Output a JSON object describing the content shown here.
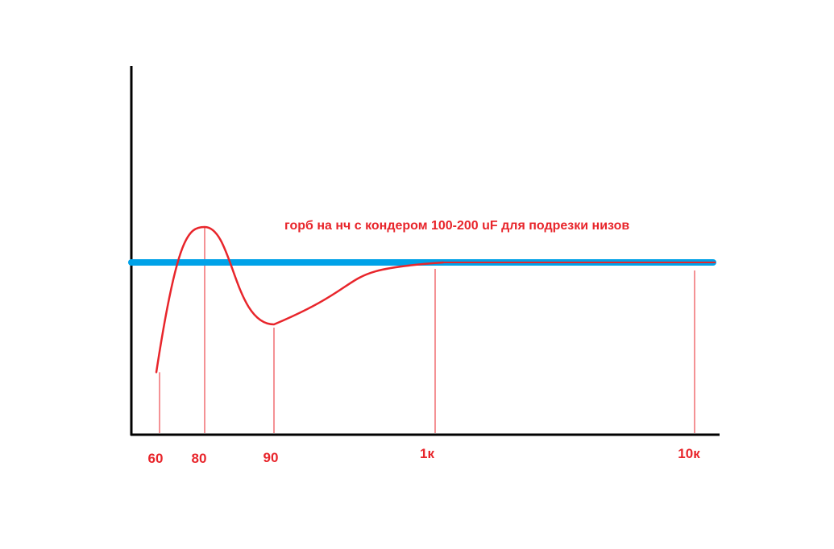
{
  "chart_data": {
    "type": "line",
    "title": "",
    "xlabel": "",
    "ylabel": "",
    "grid": false,
    "annotation": "горб на нч с кондером 100-200 uF для подрезки низов",
    "categories": [
      "60",
      "80",
      "90",
      "1к",
      "10к"
    ],
    "series": [
      {
        "color": "#00a2e8",
        "shape": "flat",
        "values": [
          0,
          0,
          0,
          0,
          0
        ]
      },
      {
        "color": "#e8252b",
        "shape": "hump",
        "values": [
          -0.62,
          0.2,
          -0.35,
          0.0,
          0.0
        ]
      }
    ]
  },
  "colors": {
    "axis": "#000000",
    "reference": "#00a2e8",
    "response": "#e8252b",
    "text": "#e8252b"
  }
}
